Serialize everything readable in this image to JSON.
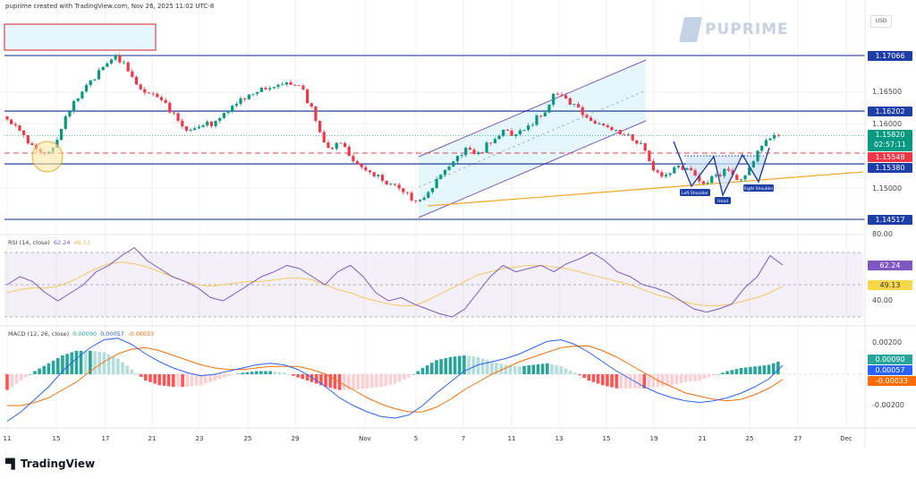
{
  "header": {
    "text": "puprime created with TradingView.com, Nov 26, 2025 11:02 UTC-8",
    "currency": "USD",
    "brand": "PUPRIME",
    "footer_logo": "TradingView"
  },
  "colors": {
    "up": "#089981",
    "down": "#f23645",
    "level_line": "#0d2a8c",
    "rsi": "#7e57c2",
    "rsi_ma": "#f5c85c",
    "macd": "#2962ff",
    "signal": "#ff6d00",
    "channel": "#7e57c2",
    "trendline": "#f5a623"
  },
  "chart_data": [
    {
      "type": "candlestick",
      "title": "",
      "x_tick_labels": [
        "11",
        "15",
        "17",
        "21",
        "23",
        "25",
        "29",
        "Nov",
        "5",
        "7",
        "11",
        "13",
        "15",
        "19",
        "21",
        "25",
        "27",
        "Dec"
      ],
      "y_tick_labels": [
        "1.16500",
        "1.16000",
        "1.15000"
      ],
      "closes": [
        1.1612,
        1.1598,
        1.157,
        1.1556,
        1.1563,
        1.1612,
        1.164,
        1.1668,
        1.1689,
        1.1707,
        1.1682,
        1.1654,
        1.1647,
        1.1633,
        1.1605,
        1.1591,
        1.1598,
        1.1605,
        1.1619,
        1.164,
        1.1647,
        1.1654,
        1.1661,
        1.1661,
        1.1654,
        1.1605,
        1.1563,
        1.157,
        1.1542,
        1.1528,
        1.1521,
        1.1507,
        1.1494,
        1.148,
        1.1494,
        1.1521,
        1.1542,
        1.1563,
        1.1556,
        1.157,
        1.1591,
        1.1584,
        1.1598,
        1.1612,
        1.1647,
        1.164,
        1.1626,
        1.1605,
        1.1598,
        1.1591,
        1.1584,
        1.157,
        1.1528,
        1.1521,
        1.1535,
        1.1528,
        1.1507,
        1.1521,
        1.1528,
        1.1514,
        1.1542,
        1.1575,
        1.1582
      ],
      "ylim": [
        1.144,
        1.175
      ],
      "levels": [
        {
          "value": "1.17066",
          "style": "solid"
        },
        {
          "value": "1.16202",
          "style": "solid"
        },
        {
          "value": "1.15380",
          "style": "solid"
        },
        {
          "value": "1.14517",
          "style": "solid"
        }
      ],
      "last_price": {
        "value": "1.15820",
        "countdown": "02:57:11"
      },
      "red_level": {
        "value": "1.15548",
        "style": "dashed"
      },
      "annotations": {
        "left_shoulder": "Left Shoulder",
        "head": "Head",
        "right_shoulder": "Right Shoulder"
      }
    },
    {
      "type": "line",
      "title": "RSI (14, close)",
      "legend": {
        "rsi": "62.24",
        "ma": "49.13"
      },
      "y_tick_labels": [
        "80.00",
        "40.00"
      ],
      "bands": [
        70,
        50,
        30
      ],
      "ylim": [
        20,
        80
      ],
      "series": [
        {
          "name": "RSI",
          "values": [
            50,
            55,
            52,
            45,
            40,
            45,
            50,
            58,
            62,
            68,
            73,
            65,
            60,
            55,
            52,
            48,
            42,
            40,
            45,
            50,
            55,
            58,
            62,
            60,
            55,
            50,
            58,
            62,
            55,
            45,
            40,
            42,
            38,
            35,
            32,
            30,
            35,
            45,
            55,
            62,
            58,
            60,
            62,
            58,
            63,
            66,
            70,
            65,
            58,
            55,
            50,
            48,
            45,
            40,
            35,
            33,
            35,
            38,
            48,
            55,
            68,
            62.24
          ]
        },
        {
          "name": "MA",
          "values": [
            45,
            47,
            48,
            48,
            49,
            52,
            56,
            60,
            63,
            64,
            63,
            61,
            58,
            55,
            52,
            50,
            49,
            50,
            51,
            52,
            52,
            53,
            54,
            54,
            53,
            50,
            47,
            45,
            42,
            40,
            38,
            37,
            37,
            40,
            44,
            48,
            52,
            56,
            58,
            60,
            61,
            62,
            62,
            61,
            60,
            58,
            56,
            54,
            52,
            50,
            47,
            44,
            42,
            40,
            38,
            37,
            37,
            38,
            40,
            42,
            45,
            49.13
          ]
        }
      ]
    },
    {
      "type": "line",
      "title": "MACD (12, 26, close)",
      "legend": {
        "histogram": "0.00090",
        "macd": "0.00057",
        "signal": "-0.00033"
      },
      "y_tick_labels": [
        "0.00200",
        "-0.00200"
      ],
      "ylim": [
        -0.0036,
        0.0034
      ],
      "series": [
        {
          "name": "MACD",
          "values": [
            -0.003,
            -0.0024,
            -0.0016,
            -0.0008,
            0.0002,
            0.001,
            0.0017,
            0.0022,
            0.0023,
            0.0019,
            0.0013,
            0.0008,
            0.0004,
            0.0001,
            -0.0001,
            0.0,
            0.0002,
            0.0004,
            0.0006,
            0.0007,
            0.0006,
            0.0003,
            -0.0002,
            -0.0008,
            -0.0015,
            -0.002,
            -0.0024,
            -0.0027,
            -0.0028,
            -0.0026,
            -0.002,
            -0.0012,
            -0.0005,
            0.0002,
            0.0006,
            0.0008,
            0.001,
            0.0013,
            0.0017,
            0.0021,
            0.0022,
            0.0019,
            0.0014,
            0.0008,
            0.0002,
            -0.0003,
            -0.0008,
            -0.0012,
            -0.0015,
            -0.0017,
            -0.0018,
            -0.0017,
            -0.0015,
            -0.0012,
            -0.0008,
            -0.0003,
            0.00057
          ]
        },
        {
          "name": "Signal",
          "values": [
            -0.002,
            -0.002,
            -0.0018,
            -0.0015,
            -0.001,
            -0.0005,
            0.0002,
            0.0008,
            0.0013,
            0.0016,
            0.0017,
            0.0015,
            0.0012,
            0.0009,
            0.0006,
            0.0004,
            0.0003,
            0.0003,
            0.0004,
            0.0005,
            0.0005,
            0.0005,
            0.0003,
            0.0,
            -0.0005,
            -0.001,
            -0.0015,
            -0.0019,
            -0.0022,
            -0.0024,
            -0.0024,
            -0.0021,
            -0.0016,
            -0.001,
            -0.0005,
            0.0,
            0.0004,
            0.0008,
            0.0011,
            0.0014,
            0.0017,
            0.0018,
            0.0018,
            0.0015,
            0.0011,
            0.0006,
            0.0001,
            -0.0004,
            -0.0008,
            -0.0012,
            -0.0014,
            -0.0016,
            -0.0017,
            -0.0016,
            -0.0013,
            -0.0009,
            -0.00033
          ]
        }
      ]
    }
  ]
}
